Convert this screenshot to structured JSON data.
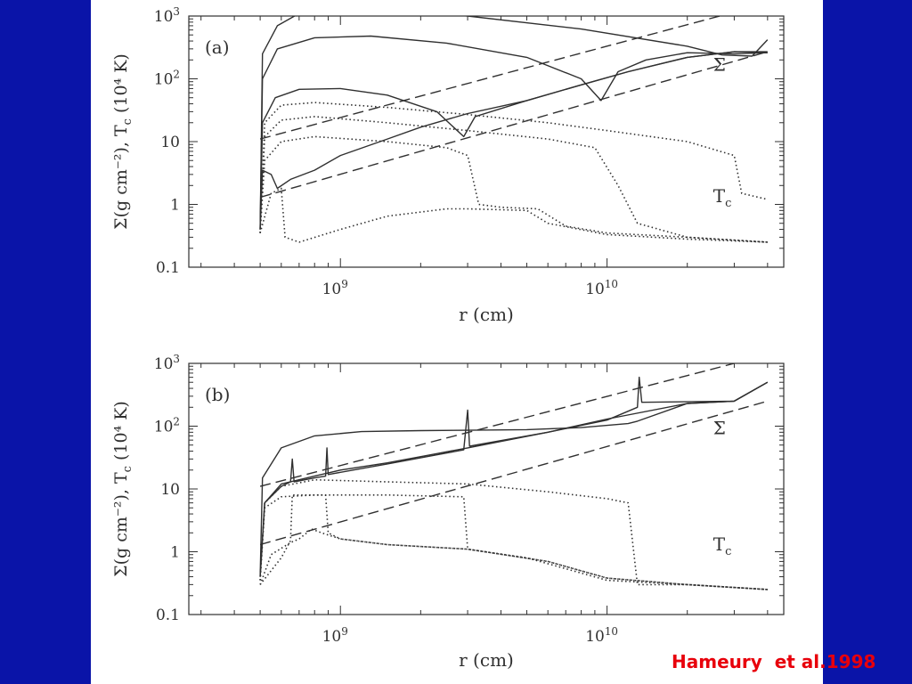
{
  "colors": {
    "background": "#0a14a8",
    "panel": "#ffffff",
    "ink": "#303030",
    "citation": "#e8000b"
  },
  "citation": "Hameury  et al.1998",
  "chart_data": [
    {
      "type": "line",
      "panel_label": "(a)",
      "xlabel": "r (cm)",
      "ylabel": "Σ(g cm⁻²), T_c (10⁴ K)",
      "xscale": "log",
      "yscale": "log",
      "xlim": [
        270000000,
        46000000000
      ],
      "ylim": [
        0.1,
        1000
      ],
      "x_ticks": [
        {
          "value": 1000000000,
          "base": "10",
          "exp": "9"
        },
        {
          "value": 10000000000,
          "base": "10",
          "exp": "10"
        }
      ],
      "y_ticks": [
        {
          "value": 0.1,
          "base": "0.1",
          "exp": ""
        },
        {
          "value": 1,
          "base": "1",
          "exp": ""
        },
        {
          "value": 10,
          "base": "10",
          "exp": ""
        },
        {
          "value": 100,
          "base": "10",
          "exp": "2"
        },
        {
          "value": 1000,
          "base": "10",
          "exp": "3"
        }
      ],
      "annotations": [
        {
          "text": "Σ",
          "sub": "",
          "x": 25000000000,
          "y": 135
        },
        {
          "text": "T",
          "sub": "c",
          "x": 25000000000,
          "y": 1.08
        }
      ],
      "series": [
        {
          "style": "dashed",
          "points": [
            [
              500000000,
              1.3
            ],
            [
              40000000000,
              270
            ]
          ]
        },
        {
          "style": "dashed",
          "points": [
            [
              500000000,
              11
            ],
            [
              40000000000,
              1600
            ]
          ]
        },
        {
          "style": "solid",
          "points": [
            [
              500000000,
              0.4
            ],
            [
              510000000,
              250
            ],
            [
              580000000,
              700
            ],
            [
              700000000,
              1100
            ],
            [
              1000000000,
              1300
            ],
            [
              1500000000,
              1300
            ],
            [
              3000000000,
              1000
            ],
            [
              8000000000,
              620
            ],
            [
              20000000000,
              330
            ],
            [
              27000000000,
              240
            ],
            [
              35000000000,
              230
            ],
            [
              40000000000,
              420
            ]
          ]
        },
        {
          "style": "solid",
          "points": [
            [
              500000000,
              0.4
            ],
            [
              510000000,
              100
            ],
            [
              580000000,
              300
            ],
            [
              800000000,
              450
            ],
            [
              1300000000,
              480
            ],
            [
              2500000000,
              370
            ],
            [
              5000000000,
              220
            ],
            [
              8000000000,
              100
            ],
            [
              9500000000,
              45
            ],
            [
              11000000000,
              130
            ],
            [
              14000000000,
              200
            ],
            [
              20000000000,
              260
            ],
            [
              30000000000,
              250
            ],
            [
              40000000000,
              260
            ]
          ]
        },
        {
          "style": "solid",
          "points": [
            [
              500000000,
              0.4
            ],
            [
              510000000,
              20
            ],
            [
              570000000,
              50
            ],
            [
              700000000,
              68
            ],
            [
              1000000000,
              70
            ],
            [
              1500000000,
              55
            ],
            [
              2300000000,
              30
            ],
            [
              2900000000,
              12
            ],
            [
              3200000000,
              25
            ],
            [
              5000000000,
              45
            ],
            [
              8000000000,
              80
            ],
            [
              12000000000,
              130
            ],
            [
              20000000000,
              220
            ],
            [
              30000000000,
              270
            ],
            [
              40000000000,
              260
            ]
          ]
        },
        {
          "style": "solid",
          "points": [
            [
              500000000,
              0.4
            ],
            [
              510000000,
              3.5
            ],
            [
              550000000,
              3
            ],
            [
              580000000,
              1.8
            ],
            [
              650000000,
              2.5
            ],
            [
              800000000,
              3.5
            ],
            [
              1000000000,
              6
            ],
            [
              1500000000,
              11
            ],
            [
              2000000000,
              17
            ],
            [
              3000000000,
              28
            ],
            [
              5000000000,
              45
            ],
            [
              8000000000,
              80
            ],
            [
              12000000000,
              130
            ],
            [
              20000000000,
              220
            ],
            [
              30000000000,
              270
            ],
            [
              40000000000,
              270
            ]
          ]
        },
        {
          "style": "dotted",
          "points": [
            [
              500000000,
              0.35
            ],
            [
              520000000,
              20
            ],
            [
              600000000,
              38
            ],
            [
              800000000,
              42
            ],
            [
              1500000000,
              35
            ],
            [
              3000000000,
              27
            ],
            [
              6000000000,
              20
            ],
            [
              10000000000,
              15
            ],
            [
              20000000000,
              10
            ],
            [
              30000000000,
              6
            ],
            [
              32000000000,
              1.5
            ],
            [
              40000000000,
              1.2
            ]
          ]
        },
        {
          "style": "dotted",
          "points": [
            [
              500000000,
              0.35
            ],
            [
              520000000,
              12
            ],
            [
              600000000,
              22
            ],
            [
              800000000,
              25
            ],
            [
              1500000000,
              20
            ],
            [
              3000000000,
              15
            ],
            [
              6000000000,
              11
            ],
            [
              9000000000,
              8
            ],
            [
              11000000000,
              2
            ],
            [
              13000000000,
              0.5
            ],
            [
              20000000000,
              0.3
            ],
            [
              40000000000,
              0.25
            ]
          ]
        },
        {
          "style": "dotted",
          "points": [
            [
              500000000,
              0.35
            ],
            [
              520000000,
              5
            ],
            [
              600000000,
              10
            ],
            [
              800000000,
              12
            ],
            [
              1500000000,
              10
            ],
            [
              2500000000,
              8
            ],
            [
              3000000000,
              6
            ],
            [
              3300000000,
              1
            ],
            [
              4000000000,
              0.9
            ],
            [
              5500000000,
              0.85
            ],
            [
              7000000000,
              0.45
            ],
            [
              10000000000,
              0.35
            ],
            [
              20000000000,
              0.3
            ],
            [
              40000000000,
              0.25
            ]
          ]
        },
        {
          "style": "dotted",
          "points": [
            [
              500000000,
              0.35
            ],
            [
              550000000,
              1.5
            ],
            [
              600000000,
              1.8
            ],
            [
              620000000,
              0.3
            ],
            [
              700000000,
              0.25
            ],
            [
              1000000000,
              0.4
            ],
            [
              1500000000,
              0.65
            ],
            [
              2500000000,
              0.85
            ],
            [
              3000000000,
              0.85
            ],
            [
              5000000000,
              0.8
            ],
            [
              6000000000,
              0.5
            ],
            [
              10000000000,
              0.33
            ],
            [
              20000000000,
              0.28
            ],
            [
              40000000000,
              0.25
            ]
          ]
        }
      ]
    },
    {
      "type": "line",
      "panel_label": "(b)",
      "xlabel": "r (cm)",
      "ylabel": "Σ(g cm⁻²), T_c (10⁴ K)",
      "xscale": "log",
      "yscale": "log",
      "xlim": [
        270000000,
        46000000000
      ],
      "ylim": [
        0.1,
        1000
      ],
      "x_ticks": [
        {
          "value": 1000000000,
          "base": "10",
          "exp": "9"
        },
        {
          "value": 10000000000,
          "base": "10",
          "exp": "10"
        }
      ],
      "y_ticks": [
        {
          "value": 0.1,
          "base": "0.1",
          "exp": ""
        },
        {
          "value": 1,
          "base": "1",
          "exp": ""
        },
        {
          "value": 10,
          "base": "10",
          "exp": ""
        },
        {
          "value": 100,
          "base": "10",
          "exp": "2"
        },
        {
          "value": 1000,
          "base": "10",
          "exp": "3"
        }
      ],
      "annotations": [
        {
          "text": "Σ",
          "sub": "",
          "x": 25000000000,
          "y": 75
        },
        {
          "text": "T",
          "sub": "c",
          "x": 25000000000,
          "y": 1.05
        }
      ],
      "series": [
        {
          "style": "dashed",
          "points": [
            [
              500000000,
              1.3
            ],
            [
              40000000000,
              250
            ]
          ]
        },
        {
          "style": "dashed",
          "points": [
            [
              500000000,
              11
            ],
            [
              30000000000,
              1000
            ]
          ]
        },
        {
          "style": "solid",
          "points": [
            [
              500000000,
              0.4
            ],
            [
              510000000,
              15
            ],
            [
              600000000,
              45
            ],
            [
              800000000,
              70
            ],
            [
              1200000000,
              82
            ],
            [
              2000000000,
              85
            ],
            [
              3000000000,
              86
            ],
            [
              5000000000,
              88
            ],
            [
              8000000000,
              95
            ],
            [
              12000000000,
              110
            ],
            [
              13000000000,
              120
            ],
            [
              20000000000,
              230
            ],
            [
              30000000000,
              250
            ],
            [
              40000000000,
              500
            ]
          ]
        },
        {
          "style": "solid",
          "points": [
            [
              500000000,
              0.4
            ],
            [
              520000000,
              6
            ],
            [
              600000000,
              11
            ],
            [
              650000000,
              13
            ],
            [
              660000000,
              30
            ],
            [
              670000000,
              13
            ],
            [
              800000000,
              15
            ],
            [
              880000000,
              16
            ],
            [
              890000000,
              45
            ],
            [
              900000000,
              17
            ],
            [
              1500000000,
              25
            ],
            [
              2900000000,
              42
            ],
            [
              3000000000,
              180
            ],
            [
              3050000000,
              48
            ],
            [
              6000000000,
              80
            ],
            [
              10000000000,
              125
            ],
            [
              13000000000,
              200
            ],
            [
              13200000000,
              600
            ],
            [
              13500000000,
              240
            ],
            [
              20000000000,
              245
            ],
            [
              30000000000,
              250
            ],
            [
              40000000000,
              500
            ]
          ]
        },
        {
          "style": "solid",
          "points": [
            [
              500000000,
              0.4
            ],
            [
              520000000,
              6
            ],
            [
              600000000,
              12
            ],
            [
              800000000,
              16
            ],
            [
              1000000000,
              20
            ],
            [
              1500000000,
              26
            ],
            [
              3000000000,
              45
            ],
            [
              6000000000,
              80
            ],
            [
              10000000000,
              130
            ],
            [
              20000000000,
              230
            ],
            [
              30000000000,
              250
            ],
            [
              40000000000,
              500
            ]
          ]
        },
        {
          "style": "dotted",
          "points": [
            [
              500000000,
              0.35
            ],
            [
              520000000,
              6
            ],
            [
              600000000,
              11
            ],
            [
              800000000,
              14
            ],
            [
              1500000000,
              13
            ],
            [
              3000000000,
              12
            ],
            [
              6000000000,
              9
            ],
            [
              10000000000,
              7
            ],
            [
              12000000000,
              6
            ],
            [
              13000000000,
              0.3
            ],
            [
              20000000000,
              0.3
            ],
            [
              40000000000,
              0.25
            ]
          ]
        },
        {
          "style": "dotted",
          "points": [
            [
              500000000,
              0.35
            ],
            [
              520000000,
              5
            ],
            [
              600000000,
              7.5
            ],
            [
              800000000,
              8
            ],
            [
              1500000000,
              8
            ],
            [
              2900000000,
              7.5
            ],
            [
              3000000000,
              1.1
            ],
            [
              5000000000,
              0.8
            ],
            [
              10000000000,
              0.35
            ],
            [
              20000000000,
              0.3
            ],
            [
              40000000000,
              0.25
            ]
          ]
        },
        {
          "style": "dotted",
          "points": [
            [
              500000000,
              0.3
            ],
            [
              600000000,
              0.8
            ],
            [
              650000000,
              1.5
            ],
            [
              660000000,
              8
            ],
            [
              880000000,
              8
            ],
            [
              900000000,
              2
            ],
            [
              1000000000,
              1.6
            ],
            [
              1500000000,
              1.3
            ],
            [
              3000000000,
              1.1
            ],
            [
              6000000000,
              0.7
            ],
            [
              10000000000,
              0.38
            ],
            [
              20000000000,
              0.3
            ],
            [
              40000000000,
              0.25
            ]
          ]
        },
        {
          "style": "dotted",
          "points": [
            [
              500000000,
              0.3
            ],
            [
              550000000,
              0.9
            ],
            [
              650000000,
              1.4
            ],
            [
              700000000,
              1.6
            ],
            [
              780000000,
              2.3
            ],
            [
              850000000,
              2
            ],
            [
              1000000000,
              1.6
            ],
            [
              1500000000,
              1.3
            ],
            [
              3000000000,
              1.1
            ],
            [
              6000000000,
              0.7
            ],
            [
              10000000000,
              0.38
            ],
            [
              20000000000,
              0.3
            ],
            [
              40000000000,
              0.25
            ]
          ]
        }
      ]
    }
  ]
}
